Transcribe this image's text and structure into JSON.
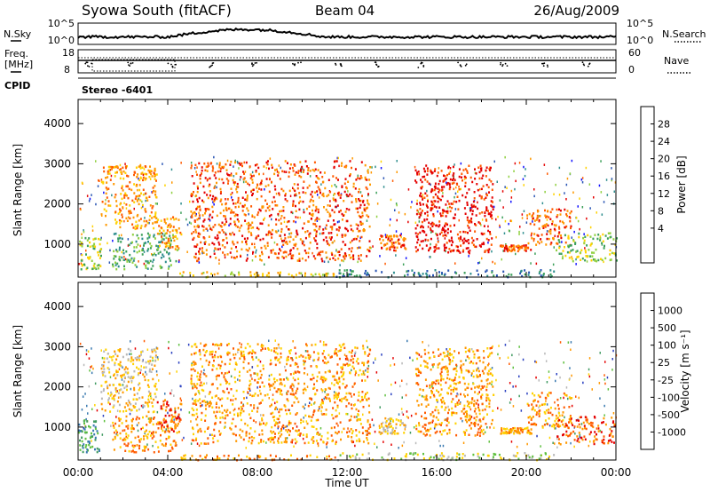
{
  "header": {
    "title": "Syowa South (fitACF)",
    "beam": "Beam 04",
    "date": "26/Aug/2009"
  },
  "noise_panel": {
    "left_label": "N.Sky",
    "right_label": "N.Search",
    "left_ticks": [
      "10^5",
      "10^0"
    ],
    "right_ticks": [
      "10^5",
      "10^0"
    ]
  },
  "freq_panel": {
    "left_label_1": "Freq.",
    "left_label_2": "[MHz]",
    "right_label": "Nave",
    "left_ticks": [
      "18",
      "8"
    ],
    "right_ticks": [
      "60",
      "0"
    ]
  },
  "cpid": {
    "label": "CPID",
    "value": "Stereo -6401"
  },
  "chart_data": [
    {
      "type": "heatmap",
      "name": "power",
      "ylabel": "Slant Range [km]",
      "ylim": [
        180,
        4600
      ],
      "y_ticks": [
        1000,
        2000,
        3000,
        4000
      ],
      "xlim": [
        0,
        24
      ],
      "colorbar": {
        "label": "Power [dB]",
        "ticks": [
          "28",
          "24",
          "20",
          "16",
          "12",
          "8",
          "4"
        ],
        "colors": [
          "#e40000",
          "#ff5a00",
          "#ff9800",
          "#ffd200",
          "#90d040",
          "#3ca05a",
          "#2e8e8e",
          "#2a55b4",
          "#1010ff"
        ]
      },
      "echo_regions": [
        {
          "t0": 0.0,
          "t1": 1.0,
          "r0": 400,
          "r1": 1200,
          "level": 4
        },
        {
          "t0": 1.5,
          "t1": 4.4,
          "r0": 400,
          "r1": 1300,
          "level": 5
        },
        {
          "t0": 1.0,
          "t1": 3.5,
          "r0": 1400,
          "r1": 3000,
          "level": 2
        },
        {
          "t0": 3.5,
          "t1": 4.6,
          "r0": 900,
          "r1": 1700,
          "level": 2
        },
        {
          "t0": 5.0,
          "t1": 13.0,
          "r0": 600,
          "r1": 3100,
          "level": 1
        },
        {
          "t0": 13.4,
          "t1": 14.6,
          "r0": 850,
          "r1": 1250,
          "level": 1
        },
        {
          "t0": 15.0,
          "t1": 18.5,
          "r0": 800,
          "r1": 3000,
          "level": 0
        },
        {
          "t0": 18.8,
          "t1": 20.2,
          "r0": 850,
          "r1": 1000,
          "level": 1
        },
        {
          "t0": 20.0,
          "t1": 22.0,
          "r0": 1000,
          "r1": 1900,
          "level": 1
        },
        {
          "t0": 21.3,
          "t1": 24.0,
          "r0": 600,
          "r1": 1300,
          "level": 4
        },
        {
          "t0": 4.5,
          "t1": 11.5,
          "r0": 200,
          "r1": 330,
          "level": 3
        },
        {
          "t0": 11.5,
          "t1": 21.3,
          "r0": 200,
          "r1": 380,
          "level": 6
        }
      ]
    },
    {
      "type": "heatmap",
      "name": "velocity",
      "ylabel": "Slant Range [km]",
      "ylim": [
        180,
        4600
      ],
      "y_ticks": [
        1000,
        2000,
        3000,
        4000
      ],
      "xlim": [
        0,
        24
      ],
      "xlabel": "Time UT",
      "x_ticks": [
        "00:00",
        "04:00",
        "08:00",
        "12:00",
        "16:00",
        "20:00",
        "00:00"
      ],
      "colorbar": {
        "label": "Velocity [m s⁻¹]",
        "ticks": [
          "1000",
          "500",
          "100",
          "25",
          "-25",
          "-100",
          "-500",
          "-1000"
        ],
        "colors": [
          "#2a40c0",
          "#3a7ab0",
          "#3f9a60",
          "#60c040",
          "#b8b8b8",
          "#ffd200",
          "#ff9800",
          "#ff5a00",
          "#e40000"
        ]
      },
      "echo_regions": [
        {
          "t0": 0.0,
          "t1": 1.0,
          "r0": 400,
          "r1": 1200,
          "level": 2
        },
        {
          "t0": 1.5,
          "t1": 4.4,
          "r0": 400,
          "r1": 1300,
          "level": 6
        },
        {
          "t0": 1.0,
          "t1": 3.5,
          "r0": 1400,
          "r1": 3000,
          "level": 5
        },
        {
          "t0": 3.5,
          "t1": 4.6,
          "r0": 900,
          "r1": 1700,
          "level": 7
        },
        {
          "t0": 5.0,
          "t1": 13.0,
          "r0": 600,
          "r1": 3100,
          "level": 6
        },
        {
          "t0": 13.4,
          "t1": 14.6,
          "r0": 850,
          "r1": 1250,
          "level": 5
        },
        {
          "t0": 15.0,
          "t1": 18.5,
          "r0": 800,
          "r1": 3000,
          "level": 6
        },
        {
          "t0": 18.8,
          "t1": 20.2,
          "r0": 850,
          "r1": 1000,
          "level": 6
        },
        {
          "t0": 20.0,
          "t1": 22.0,
          "r0": 1000,
          "r1": 1900,
          "level": 6
        },
        {
          "t0": 21.3,
          "t1": 24.0,
          "r0": 600,
          "r1": 1300,
          "level": 7
        },
        {
          "t0": 4.5,
          "t1": 11.5,
          "r0": 200,
          "r1": 330,
          "level": 6
        },
        {
          "t0": 11.5,
          "t1": 21.3,
          "r0": 200,
          "r1": 380,
          "level": 4
        }
      ]
    }
  ]
}
